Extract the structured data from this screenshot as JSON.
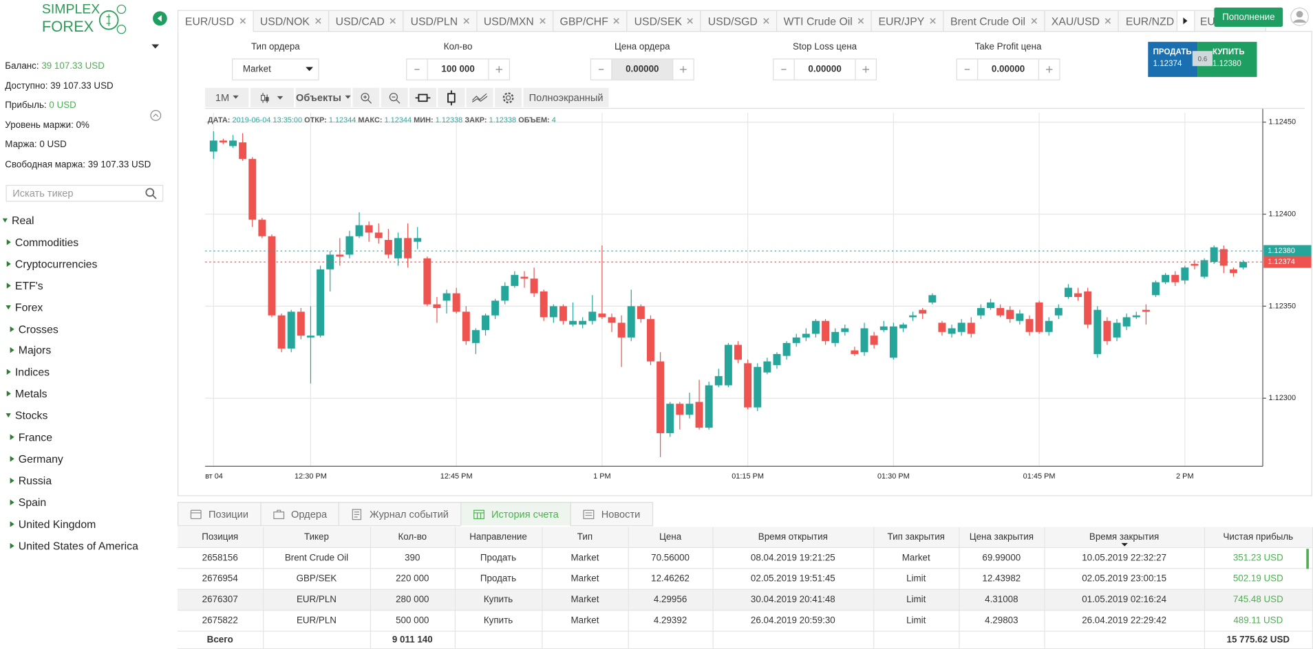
{
  "sidebar": {
    "logo": [
      "SIMPLEX",
      "FOREX"
    ],
    "account": [
      {
        "label": "Баланс:",
        "value": "39 107.33 USD",
        "highlight": true
      },
      {
        "label": "Доступно:",
        "value": "39 107.33 USD",
        "highlight": false
      },
      {
        "label": "Прибыль:",
        "value": "0 USD",
        "highlight": true
      },
      {
        "label": "Уровень маржи:",
        "value": "0%",
        "highlight": false
      },
      {
        "label": "Маржа:",
        "value": "0 USD",
        "highlight": false
      },
      {
        "label": "Свободная маржа:",
        "value": "39 107.33 USD",
        "highlight": false
      }
    ],
    "search_placeholder": "Искать тикер",
    "tree": [
      {
        "label": "Real",
        "level": 0,
        "open": true
      },
      {
        "label": "Commodities",
        "level": 1,
        "open": false
      },
      {
        "label": "Cryptocurrencies",
        "level": 1,
        "open": false
      },
      {
        "label": "ETF's",
        "level": 1,
        "open": false
      },
      {
        "label": "Forex",
        "level": 1,
        "open": true
      },
      {
        "label": "Crosses",
        "level": 2,
        "open": false
      },
      {
        "label": "Majors",
        "level": 2,
        "open": false
      },
      {
        "label": "Indices",
        "level": 1,
        "open": false
      },
      {
        "label": "Metals",
        "level": 1,
        "open": false
      },
      {
        "label": "Stocks",
        "level": 1,
        "open": true
      },
      {
        "label": "France",
        "level": 2,
        "open": false
      },
      {
        "label": "Germany",
        "level": 2,
        "open": false
      },
      {
        "label": "Russia",
        "level": 2,
        "open": false
      },
      {
        "label": "Spain",
        "level": 2,
        "open": false
      },
      {
        "label": "United Kingdom",
        "level": 2,
        "open": false
      },
      {
        "label": "United States of America",
        "level": 2,
        "open": false
      }
    ]
  },
  "tabs": {
    "items": [
      "EUR/USD",
      "USD/NOK",
      "USD/CAD",
      "USD/PLN",
      "USD/MXN",
      "GBP/CHF",
      "USD/SEK",
      "USD/SGD",
      "WTI Crude Oil",
      "EUR/JPY",
      "Brent Crude Oil",
      "XAU/USD",
      "EUR/NZD",
      "EUR/PLN"
    ],
    "active": 0
  },
  "deposit_button": "Пополнение",
  "order_form": [
    {
      "label": "Тип ордера",
      "value": "Market",
      "kind": "select"
    },
    {
      "label": "Кол-во",
      "value": "100 000",
      "kind": "stepper"
    },
    {
      "label": "Цена ордера",
      "value": "0.00000",
      "kind": "stepper"
    },
    {
      "label": "Stop Loss цена",
      "value": "0.00000",
      "kind": "stepper"
    },
    {
      "label": "Take Profit цена",
      "value": "0.00000",
      "kind": "stepper"
    }
  ],
  "trade": {
    "sell_label": "ПРОДАТЬ",
    "sell_price": "1.12374",
    "spread": "0.6",
    "buy_label": "КУПИТЬ",
    "buy_price": "1.12380"
  },
  "toolbar": {
    "interval": "1M",
    "objects": "Объекты",
    "fullscreen": "Полноэкранный"
  },
  "chart_data": {
    "type": "candlestick",
    "info": [
      {
        "label": "ДАТА:",
        "value": "2019-06-04 13:35:00"
      },
      {
        "label": "ОТКР:",
        "value": "1.12344"
      },
      {
        "label": "МАКС:",
        "value": "1.12344"
      },
      {
        "label": "МИН:",
        "value": "1.12338"
      },
      {
        "label": "ЗАКР:",
        "value": "1.12338"
      },
      {
        "label": "ОБЪЕМ:",
        "value": "4"
      }
    ],
    "categories": [
      "вт 04",
      null,
      null,
      null,
      null,
      null,
      null,
      null,
      null,
      null,
      "12:30 PM",
      null,
      null,
      null,
      null,
      null,
      null,
      null,
      null,
      null,
      null,
      null,
      null,
      null,
      null,
      "12:45 PM",
      null,
      null,
      null,
      null,
      null,
      null,
      null,
      null,
      null,
      null,
      null,
      null,
      null,
      null,
      "1 PM",
      null,
      null,
      null,
      null,
      null,
      null,
      null,
      null,
      null,
      null,
      null,
      null,
      null,
      null,
      "01:15 PM",
      null,
      null,
      null,
      null,
      null,
      null,
      null,
      null,
      null,
      null,
      null,
      null,
      null,
      null,
      "01:30 PM",
      null,
      null,
      null,
      null,
      null,
      null,
      null,
      null,
      null,
      null,
      null,
      null,
      null,
      null,
      "01:45 PM",
      null,
      null,
      null,
      null,
      null,
      null,
      null,
      null,
      null,
      null,
      null,
      null,
      null,
      null,
      "2 PM",
      null,
      null,
      null,
      null,
      null,
      null
    ],
    "open": [
      1.12434,
      1.1244,
      1.12437,
      1.12439,
      1.1243,
      1.12397,
      1.12388,
      1.12345,
      1.12327,
      1.12347,
      1.12333,
      1.12334,
      1.1237,
      1.12378,
      1.12378,
      1.12388,
      1.12394,
      1.1239,
      1.12386,
      1.12376,
      1.12387,
      1.12385,
      1.12376,
      1.12351,
      1.12353,
      1.12357,
      1.12347,
      1.1233,
      1.12337,
      1.12345,
      1.12353,
      1.12361,
      1.12366,
      1.12365,
      1.12358,
      1.12344,
      1.1235,
      1.1234,
      1.1234,
      1.12342,
      1.12346,
      1.12344,
      1.12341,
      1.12333,
      1.1235,
      1.12343,
      1.1232,
      1.12281,
      1.12297,
      1.12291,
      1.12298,
      1.12284,
      1.12307,
      1.12307,
      1.12329,
      1.12319,
      1.12295,
      1.12314,
      1.12318,
      1.12323,
      1.1233,
      1.12333,
      1.12335,
      1.12342,
      1.1233,
      1.12336,
      1.12326,
      1.12325,
      1.12334,
      1.12337,
      1.12322,
      1.12338,
      1.12344,
      1.12348,
      1.12352,
      1.12341,
      1.12335,
      1.12336,
      1.12341,
      1.12345,
      1.12349,
      1.12349,
      1.12348,
      1.12342,
      1.12343,
      1.12352,
      1.12336,
      1.12345,
      1.12355,
      1.12357,
      1.12358,
      1.12324,
      1.12342,
      1.12333,
      1.12339,
      1.12344,
      1.12348,
      1.12356,
      1.12363,
      1.12367,
      1.12364,
      1.12373,
      1.12366,
      1.12374,
      1.12381,
      1.1237,
      1.12371
    ],
    "high": [
      1.12445,
      1.12441,
      1.12443,
      1.12444,
      1.12431,
      1.12398,
      1.12389,
      1.12346,
      1.12348,
      1.12349,
      1.1235,
      1.12372,
      1.1238,
      1.12387,
      1.12391,
      1.12401,
      1.12396,
      1.12395,
      1.12392,
      1.1239,
      1.12395,
      1.12393,
      1.12377,
      1.12355,
      1.12359,
      1.1236,
      1.1235,
      1.12338,
      1.12346,
      1.12354,
      1.12363,
      1.12369,
      1.12369,
      1.12371,
      1.12359,
      1.12351,
      1.12351,
      1.12352,
      1.12344,
      1.12356,
      1.12383,
      1.12346,
      1.12345,
      1.12359,
      1.12351,
      1.12345,
      1.12325,
      1.12298,
      1.12298,
      1.12303,
      1.1231,
      1.12309,
      1.12316,
      1.1233,
      1.12331,
      1.12321,
      1.12319,
      1.12322,
      1.12325,
      1.12331,
      1.12335,
      1.12338,
      1.12343,
      1.12343,
      1.12338,
      1.1234,
      1.12328,
      1.12341,
      1.12336,
      1.12342,
      1.12341,
      1.12341,
      1.12347,
      1.12349,
      1.12357,
      1.12342,
      1.1234,
      1.12343,
      1.12344,
      1.12351,
      1.12354,
      1.12351,
      1.1235,
      1.12348,
      1.12345,
      1.12353,
      1.12344,
      1.12351,
      1.12362,
      1.1236,
      1.1236,
      1.1235,
      1.12344,
      1.12343,
      1.12346,
      1.12347,
      1.12351,
      1.12364,
      1.12368,
      1.12369,
      1.12372,
      1.12375,
      1.12376,
      1.12383,
      1.12383,
      1.12371,
      1.12375
    ],
    "low": [
      1.1243,
      1.12438,
      1.12436,
      1.12429,
      1.12393,
      1.12387,
      1.12344,
      1.12325,
      1.12325,
      1.12332,
      1.12308,
      1.12333,
      1.12358,
      1.12372,
      1.12376,
      1.12387,
      1.12385,
      1.12384,
      1.12376,
      1.12372,
      1.12371,
      1.12381,
      1.1235,
      1.12341,
      1.12346,
      1.12346,
      1.12329,
      1.12324,
      1.12334,
      1.12343,
      1.12351,
      1.1236,
      1.1236,
      1.12355,
      1.12342,
      1.12341,
      1.1234,
      1.12339,
      1.12338,
      1.1234,
      1.12343,
      1.12336,
      1.12317,
      1.12331,
      1.12341,
      1.12318,
      1.12268,
      1.12279,
      1.12283,
      1.12289,
      1.12283,
      1.12283,
      1.12306,
      1.12306,
      1.12319,
      1.12294,
      1.12293,
      1.12313,
      1.12316,
      1.12321,
      1.12328,
      1.12331,
      1.12333,
      1.12329,
      1.12328,
      1.12334,
      1.12323,
      1.12323,
      1.12327,
      1.12336,
      1.12321,
      1.12336,
      1.12342,
      1.12343,
      1.12351,
      1.12334,
      1.12333,
      1.12334,
      1.12333,
      1.12343,
      1.12348,
      1.12344,
      1.12341,
      1.1234,
      1.12334,
      1.12335,
      1.12334,
      1.12343,
      1.12354,
      1.12353,
      1.12338,
      1.12322,
      1.12329,
      1.12331,
      1.12337,
      1.12343,
      1.1234,
      1.12355,
      1.12362,
      1.12361,
      1.12362,
      1.1237,
      1.12365,
      1.12373,
      1.12368,
      1.12366,
      1.1237
    ],
    "close": [
      1.1244,
      1.12439,
      1.1244,
      1.1243,
      1.12397,
      1.12388,
      1.12345,
      1.12327,
      1.12347,
      1.12334,
      1.12334,
      1.1237,
      1.12378,
      1.12377,
      1.12388,
      1.12394,
      1.1239,
      1.12387,
      1.12378,
      1.12387,
      1.12376,
      1.12387,
      1.12351,
      1.12349,
      1.12357,
      1.12347,
      1.12331,
      1.12337,
      1.12345,
      1.12353,
      1.12361,
      1.12367,
      1.12365,
      1.12357,
      1.12344,
      1.1235,
      1.12342,
      1.12342,
      1.12342,
      1.12347,
      1.12344,
      1.12341,
      1.12333,
      1.1235,
      1.12343,
      1.1232,
      1.12281,
      1.12297,
      1.12291,
      1.12297,
      1.12284,
      1.12307,
      1.12312,
      1.12329,
      1.12321,
      1.12295,
      1.12317,
      1.1232,
      1.12324,
      1.1233,
      1.12333,
      1.12335,
      1.12342,
      1.12331,
      1.12336,
      1.12338,
      1.12324,
      1.12338,
      1.12329,
      1.12339,
      1.12339,
      1.1234,
      1.12345,
      1.12346,
      1.12356,
      1.12336,
      1.12338,
      1.12341,
      1.12335,
      1.12349,
      1.12352,
      1.12345,
      1.12343,
      1.12346,
      1.12336,
      1.12336,
      1.12342,
      1.12349,
      1.1236,
      1.12355,
      1.1234,
      1.12348,
      1.12331,
      1.12341,
      1.12344,
      1.12345,
      1.12347,
      1.12363,
      1.12367,
      1.12363,
      1.12371,
      1.12372,
      1.12375,
      1.12382,
      1.12372,
      1.12368,
      1.12374
    ],
    "up_color": "#26a69a",
    "down_color": "#ef5350",
    "ylim": [
      1.12263,
      1.12455
    ],
    "yticks": [
      {
        "value": 1.123,
        "label": "1.12300"
      },
      {
        "value": 1.1235,
        "label": "1.12350"
      },
      {
        "value": 1.124,
        "label": "1.12400"
      },
      {
        "value": 1.1245,
        "label": "1.12450"
      }
    ],
    "price_lines": [
      {
        "value": 1.1238,
        "label": "1.12380",
        "color": "#26a69a"
      },
      {
        "value": 1.12374,
        "label": "1.12374",
        "color": "#ef5350"
      }
    ],
    "grid": true
  },
  "bottom_tabs": {
    "items": [
      "Позиции",
      "Ордера",
      "Журнал событий",
      "История счета",
      "Новости"
    ],
    "active": 3
  },
  "table": {
    "columns": [
      "Позиция",
      "Тикер",
      "Кол-во",
      "Направление",
      "Тип",
      "Цена",
      "Время открытия",
      "Тип закрытия",
      "Цена закрытия",
      "Время закрытия",
      "Чистая прибыль"
    ],
    "rows": [
      [
        "2658156",
        "Brent Crude Oil",
        "390",
        "Продать",
        "Market",
        "70.56000",
        "08.04.2019 19:21:25",
        "Market",
        "69.99000",
        "10.05.2019 22:32:27",
        "351.23 USD"
      ],
      [
        "2676954",
        "GBP/SEK",
        "220 000",
        "Продать",
        "Market",
        "12.46262",
        "02.05.2019 19:51:45",
        "Limit",
        "12.43982",
        "02.05.2019 23:00:15",
        "502.19 USD"
      ],
      [
        "2676307",
        "EUR/PLN",
        "280 000",
        "Купить",
        "Market",
        "4.29956",
        "30.04.2019 20:41:48",
        "Limit",
        "4.31008",
        "01.05.2019 02:16:24",
        "745.48 USD"
      ],
      [
        "2675822",
        "EUR/PLN",
        "500 000",
        "Купить",
        "Market",
        "4.29392",
        "26.04.2019 20:59:30",
        "Limit",
        "4.29803",
        "26.04.2019 22:29:42",
        "489.11 USD"
      ]
    ],
    "total": {
      "label": "Всего",
      "quantity": "9 011 140",
      "profit": "15 775.62 USD"
    }
  }
}
